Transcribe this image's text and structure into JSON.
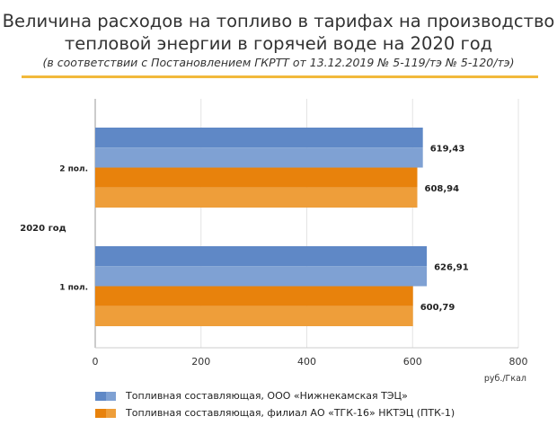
{
  "title_line1": "Величина расходов на топливо в тарифах на производство",
  "title_line2": "тепловой энергии в горячей воде на 2020 год",
  "subtitle": "(в соответствии с Постановлением ГКРТТ от 13.12.2019 № 5-119/тэ № 5-120/тэ)",
  "chart_data": {
    "type": "bar",
    "orientation": "horizontal",
    "group_label": "2020 год",
    "categories": [
      "2 пол.",
      "1 пол."
    ],
    "series": [
      {
        "name": "Топливная составляющая, ООО «Нижнекамская ТЭЦ»",
        "values": [
          619.43,
          626.91
        ],
        "labels": [
          "619,43",
          "626,91"
        ],
        "color": "#5f88c6",
        "color_light": "#7fa1d3"
      },
      {
        "name": "Топливная составляющая, филиал АО «ТГК-16» НКТЭЦ (ПТК-1)",
        "values": [
          608.94,
          600.79
        ],
        "labels": [
          "608,94",
          "600,79"
        ],
        "color": "#e8820c",
        "color_light": "#ee9e3a"
      }
    ],
    "xlim": [
      0,
      800
    ],
    "xticks": [
      "0",
      "200",
      "400",
      "600",
      "800"
    ],
    "xtick_values": [
      0,
      200,
      400,
      600,
      800
    ],
    "xlabel": "руб./Гкал",
    "grid": true,
    "legend_position": "bottom"
  }
}
